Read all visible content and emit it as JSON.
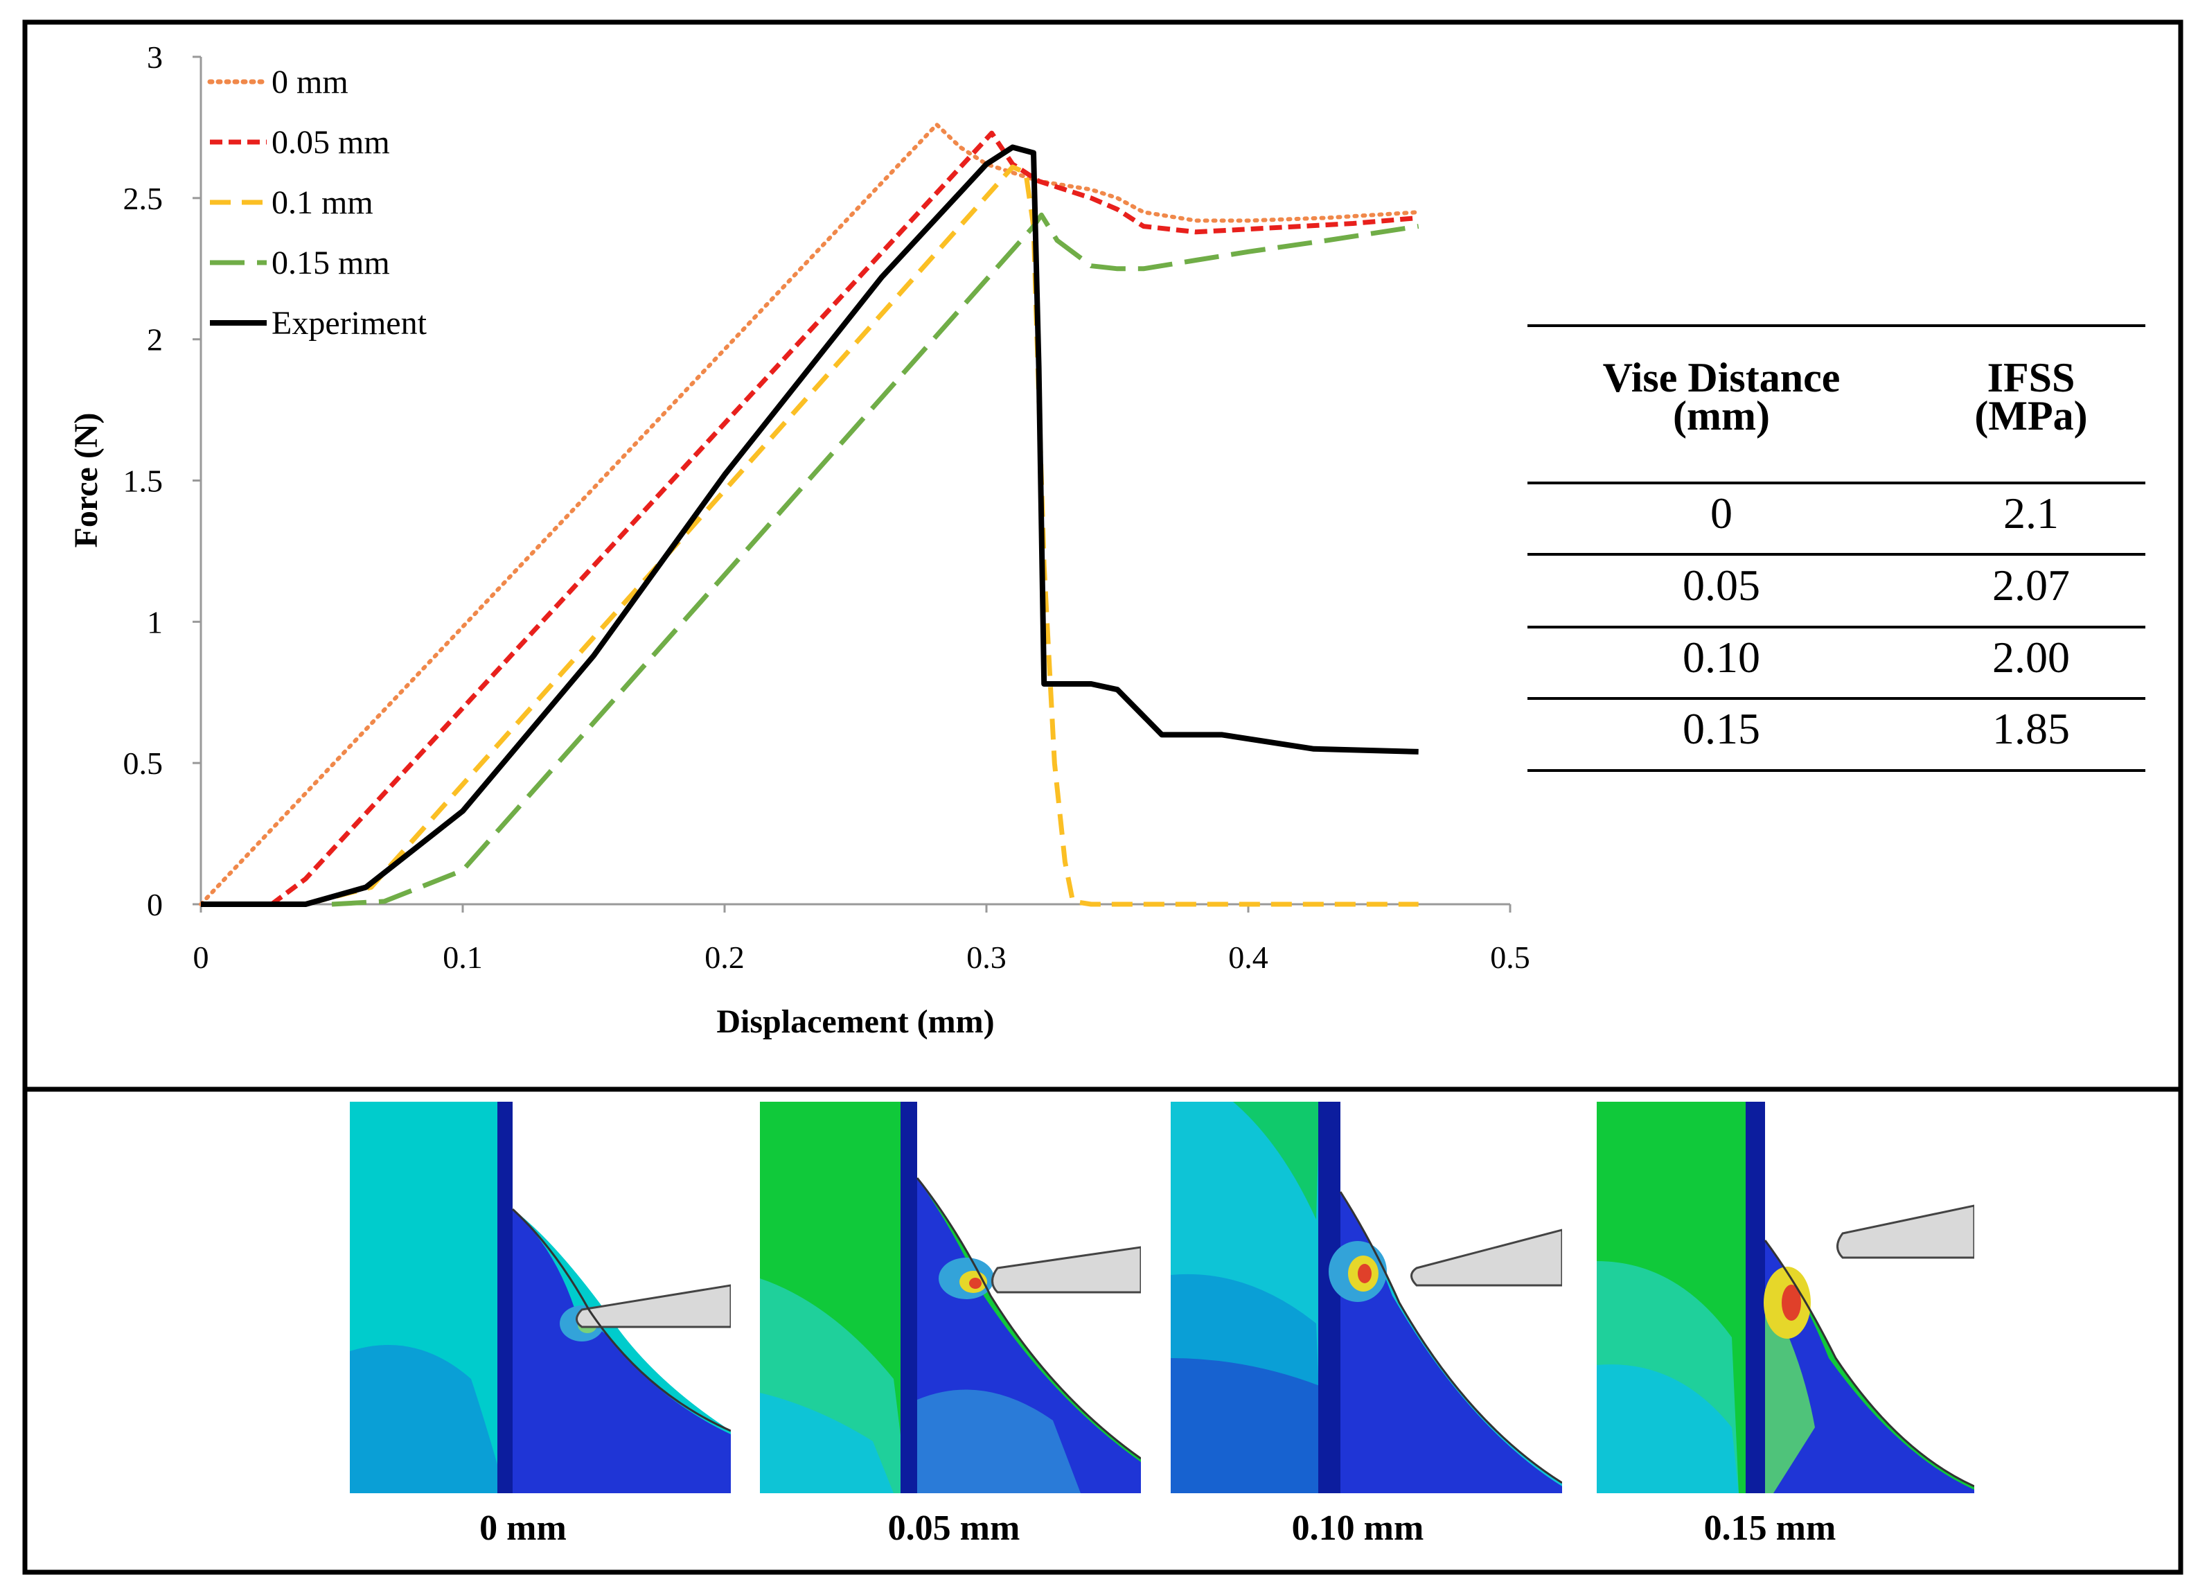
{
  "chart_data": {
    "type": "line",
    "xlabel": "Displacement (mm)",
    "ylabel": "Force (N)",
    "xlim": [
      0,
      0.5
    ],
    "ylim": [
      0,
      3
    ],
    "x_ticks": [
      "0",
      "0.1",
      "0.2",
      "0.3",
      "0.4",
      "0.5"
    ],
    "y_ticks": [
      "0",
      "0.5",
      "1",
      "1.5",
      "2",
      "2.5",
      "3"
    ],
    "grid": false,
    "legend_position": "top-left",
    "series": [
      {
        "name": "0 mm",
        "color": "#f0884a",
        "style": "dotted",
        "points": [
          [
            0.0,
            0.0
          ],
          [
            0.281,
            2.76
          ],
          [
            0.29,
            2.68
          ],
          [
            0.3,
            2.62
          ],
          [
            0.32,
            2.56
          ],
          [
            0.34,
            2.53
          ],
          [
            0.35,
            2.5
          ],
          [
            0.36,
            2.45
          ],
          [
            0.38,
            2.42
          ],
          [
            0.4,
            2.42
          ],
          [
            0.43,
            2.43
          ],
          [
            0.465,
            2.45
          ]
        ]
      },
      {
        "name": "0.05 mm",
        "color": "#e8201c",
        "style": "short-dash",
        "points": [
          [
            0.027,
            0.0
          ],
          [
            0.04,
            0.09
          ],
          [
            0.302,
            2.73
          ],
          [
            0.31,
            2.62
          ],
          [
            0.32,
            2.56
          ],
          [
            0.34,
            2.5
          ],
          [
            0.35,
            2.46
          ],
          [
            0.36,
            2.4
          ],
          [
            0.38,
            2.38
          ],
          [
            0.4,
            2.39
          ],
          [
            0.44,
            2.41
          ],
          [
            0.465,
            2.43
          ]
        ]
      },
      {
        "name": "0.1 mm",
        "color": "#fbbf24",
        "style": "dash",
        "points": [
          [
            0.04,
            0.0
          ],
          [
            0.065,
            0.06
          ],
          [
            0.31,
            2.61
          ],
          [
            0.315,
            2.59
          ],
          [
            0.318,
            2.4
          ],
          [
            0.322,
            1.2
          ],
          [
            0.326,
            0.5
          ],
          [
            0.33,
            0.15
          ],
          [
            0.333,
            0.01
          ],
          [
            0.34,
            0.0
          ],
          [
            0.465,
            0.0
          ]
        ]
      },
      {
        "name": "0.15 mm",
        "color": "#70ad47",
        "style": "long-dash",
        "points": [
          [
            0.05,
            0.0
          ],
          [
            0.07,
            0.01
          ],
          [
            0.1,
            0.12
          ],
          [
            0.318,
            2.4
          ],
          [
            0.321,
            2.44
          ],
          [
            0.327,
            2.35
          ],
          [
            0.34,
            2.26
          ],
          [
            0.35,
            2.25
          ],
          [
            0.36,
            2.25
          ],
          [
            0.38,
            2.28
          ],
          [
            0.4,
            2.31
          ],
          [
            0.43,
            2.35
          ],
          [
            0.465,
            2.4
          ]
        ]
      },
      {
        "name": "Experiment",
        "color": "#000000",
        "style": "solid",
        "points": [
          [
            0.0,
            0.0
          ],
          [
            0.04,
            0.0
          ],
          [
            0.063,
            0.06
          ],
          [
            0.1,
            0.33
          ],
          [
            0.15,
            0.88
          ],
          [
            0.2,
            1.52
          ],
          [
            0.26,
            2.22
          ],
          [
            0.3,
            2.62
          ],
          [
            0.31,
            2.68
          ],
          [
            0.318,
            2.66
          ],
          [
            0.32,
            1.9
          ],
          [
            0.322,
            0.78
          ],
          [
            0.34,
            0.78
          ],
          [
            0.35,
            0.76
          ],
          [
            0.367,
            0.6
          ],
          [
            0.39,
            0.6
          ],
          [
            0.425,
            0.55
          ],
          [
            0.465,
            0.54
          ]
        ]
      }
    ]
  },
  "table": {
    "headers": [
      [
        "Vise Distance",
        "(mm)"
      ],
      [
        "IFSS",
        "(MPa)"
      ]
    ],
    "rows": [
      [
        "0",
        "2.1"
      ],
      [
        "0.05",
        "2.07"
      ],
      [
        "0.10",
        "2.00"
      ],
      [
        "0.15",
        "1.85"
      ]
    ]
  },
  "panels": {
    "labels": [
      "0 mm",
      "0.05 mm",
      "0.10 mm",
      "0.15 mm"
    ]
  }
}
